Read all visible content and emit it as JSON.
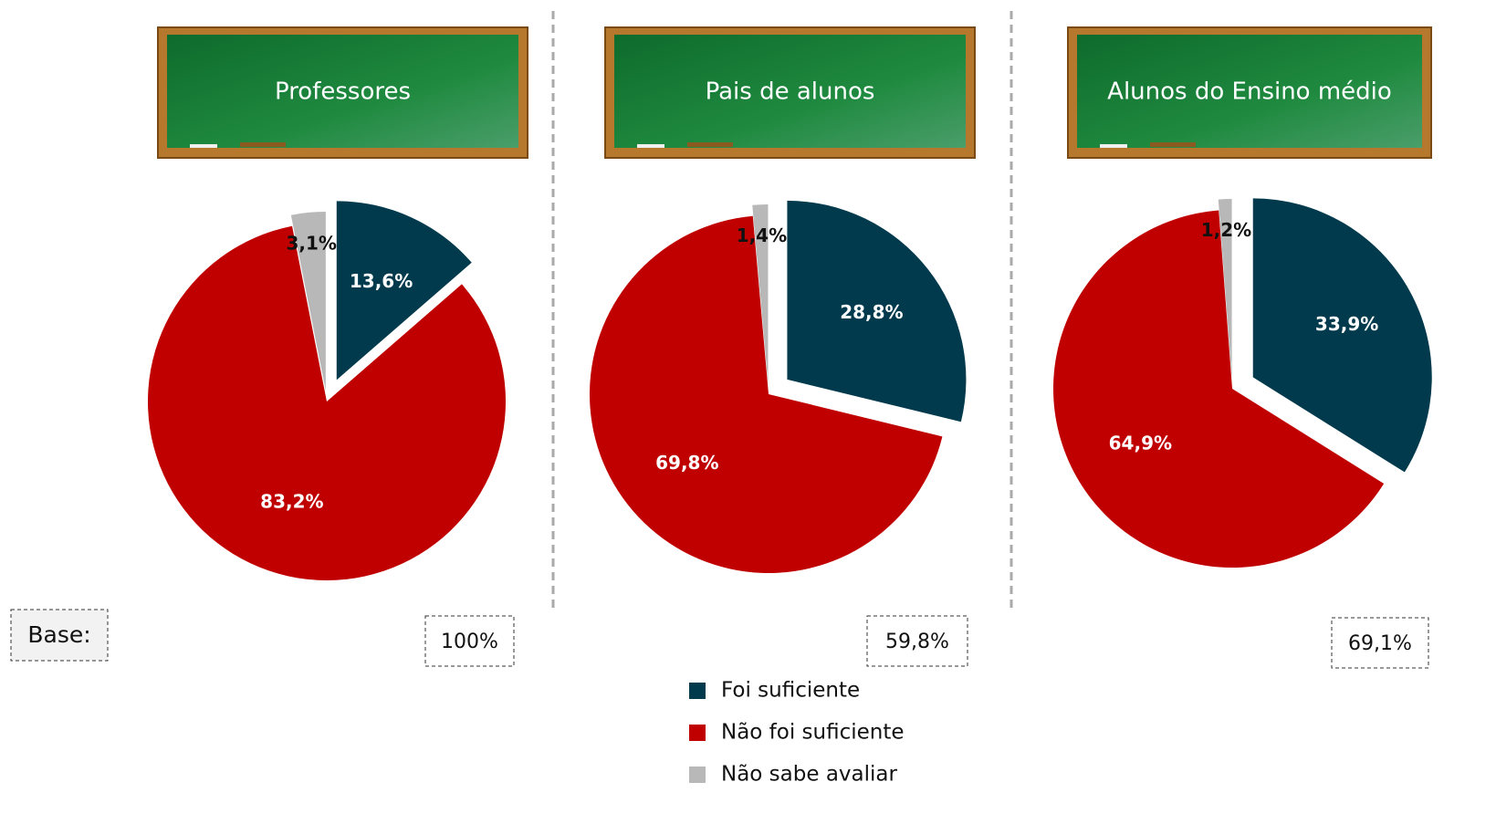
{
  "chart_data": {
    "type": "pie",
    "categories": [
      "Foi suficiente",
      "Não foi suficiente",
      "Não sabe avaliar"
    ],
    "colors": [
      "#003a4c",
      "#c00000",
      "#b8b8b8"
    ],
    "base_label": "Base:",
    "pies": [
      {
        "title": "Professores",
        "values": [
          13.6,
          83.2,
          3.1
        ],
        "value_labels": [
          "13,6%",
          "83,2%",
          "3,1%"
        ],
        "base": "100%"
      },
      {
        "title": "Pais de alunos",
        "values": [
          28.8,
          69.8,
          1.4
        ],
        "value_labels": [
          "28,8%",
          "69,8%",
          "1,4%"
        ],
        "base": "59,8%"
      },
      {
        "title": "Alunos do Ensino médio",
        "values": [
          33.9,
          64.9,
          1.2
        ],
        "value_labels": [
          "33,9%",
          "64,9%",
          "1,2%"
        ],
        "base": "69,1%"
      }
    ]
  }
}
